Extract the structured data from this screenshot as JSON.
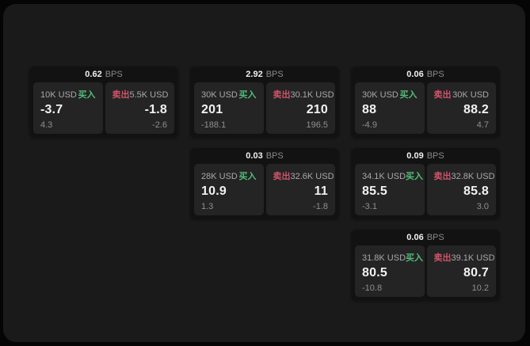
{
  "labels": {
    "bps_unit": "BPS",
    "buy": "买入",
    "sell": "卖出"
  },
  "colors": {
    "buy": "#53bd78",
    "sell": "#cf5468",
    "surface": "#1a1a1a",
    "card": "#121212",
    "panel": "#242424"
  },
  "cards": [
    {
      "bps": "0.62",
      "col": 1,
      "row": 1,
      "buy": {
        "notional": "10K USD",
        "price": "-3.7",
        "delta": "4.3"
      },
      "sell": {
        "notional": "5.5K USD",
        "price": "-1.8",
        "delta": "-2.6"
      }
    },
    {
      "bps": "2.92",
      "col": 2,
      "row": 1,
      "buy": {
        "notional": "30K USD",
        "price": "201",
        "delta": "-188.1"
      },
      "sell": {
        "notional": "30.1K USD",
        "price": "210",
        "delta": "196.5"
      }
    },
    {
      "bps": "0.06",
      "col": 3,
      "row": 1,
      "buy": {
        "notional": "30K USD",
        "price": "88",
        "delta": "-4.9"
      },
      "sell": {
        "notional": "30K USD",
        "price": "88.2",
        "delta": "4.7"
      }
    },
    {
      "bps": "0.03",
      "col": 2,
      "row": 2,
      "buy": {
        "notional": "28K USD",
        "price": "10.9",
        "delta": "1.3"
      },
      "sell": {
        "notional": "32.6K USD",
        "price": "11",
        "delta": "-1.8"
      }
    },
    {
      "bps": "0.09",
      "col": 3,
      "row": 2,
      "buy": {
        "notional": "34.1K USD",
        "price": "85.5",
        "delta": "-3.1"
      },
      "sell": {
        "notional": "32.8K USD",
        "price": "85.8",
        "delta": "3.0"
      }
    },
    {
      "bps": "0.06",
      "col": 3,
      "row": 3,
      "buy": {
        "notional": "31.8K USD",
        "price": "80.5",
        "delta": "-10.8"
      },
      "sell": {
        "notional": "39.1K USD",
        "price": "80.7",
        "delta": "10.2"
      }
    }
  ]
}
